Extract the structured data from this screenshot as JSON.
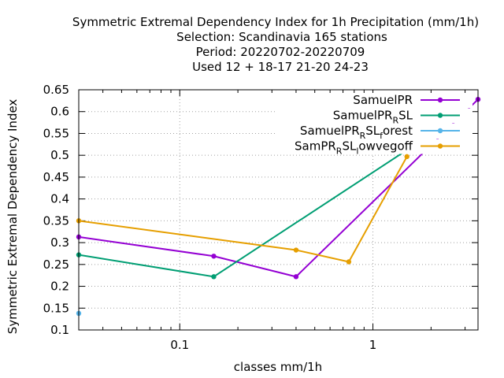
{
  "chart_data": {
    "type": "line",
    "title_lines": [
      "Symmetric Extremal Dependency Index  for 1h Precipitation (mm/1h)",
      "Selection: Scandinavia    165 stations",
      "Period: 20220702-20220709",
      "Used  12 + 18-17 21-20 24-23"
    ],
    "xlabel": "classes mm/1h",
    "ylabel": "Symmetric Extremal Dependency Index",
    "xscale": "log",
    "xlim": [
      0.03,
      3.5
    ],
    "ylim": [
      0.1,
      0.65
    ],
    "x_tick_labels": [
      {
        "value": 0.1,
        "label": "0.1"
      },
      {
        "value": 1,
        "label": "1"
      }
    ],
    "y_ticks": [
      0.1,
      0.15,
      0.2,
      0.25,
      0.3,
      0.35,
      0.4,
      0.45,
      0.5,
      0.55,
      0.6,
      0.65
    ],
    "y_tick_labels": [
      "0.1",
      "0.15",
      "0.2",
      "0.25",
      "0.3",
      "0.35",
      "0.4",
      "0.45",
      "0.5",
      "0.55",
      "0.6",
      "0.65"
    ],
    "grid": true,
    "legend_position": "top-right",
    "series": [
      {
        "name": "SamuelPR",
        "color": "#9400d3",
        "x": [
          0.03,
          0.15,
          0.4,
          3.5
        ],
        "y": [
          0.313,
          0.269,
          0.222,
          0.628
        ]
      },
      {
        "name": "SamuelPR_RSL",
        "color": "#009e73",
        "x": [
          0.03,
          0.15,
          1.5
        ],
        "y": [
          0.272,
          0.222,
          0.512
        ]
      },
      {
        "name": "SamuelPR_RSL_forest",
        "color": "#56b4e9",
        "x": [
          0.03
        ],
        "y": [
          0.138
        ]
      },
      {
        "name": "SamPR_RSL_lowvegoff",
        "color": "#e69f00",
        "x": [
          0.03,
          0.4,
          0.75,
          1.5
        ],
        "y": [
          0.35,
          0.283,
          0.256,
          0.497
        ]
      }
    ],
    "legend": [
      {
        "base": "SamuelPR",
        "parts": []
      },
      {
        "base": "SamuelPR",
        "parts": [
          [
            "R",
            "sub"
          ],
          [
            "SL",
            ""
          ]
        ]
      },
      {
        "base": "SamuelPR",
        "parts": [
          [
            "R",
            "sub"
          ],
          [
            "SL",
            ""
          ],
          [
            "f",
            "sub"
          ],
          [
            "orest",
            ""
          ]
        ]
      },
      {
        "base": "SamPR",
        "parts": [
          [
            "R",
            "sub"
          ],
          [
            "SL",
            ""
          ],
          [
            "l",
            "sub"
          ],
          [
            "owvegoff",
            ""
          ]
        ]
      }
    ]
  }
}
